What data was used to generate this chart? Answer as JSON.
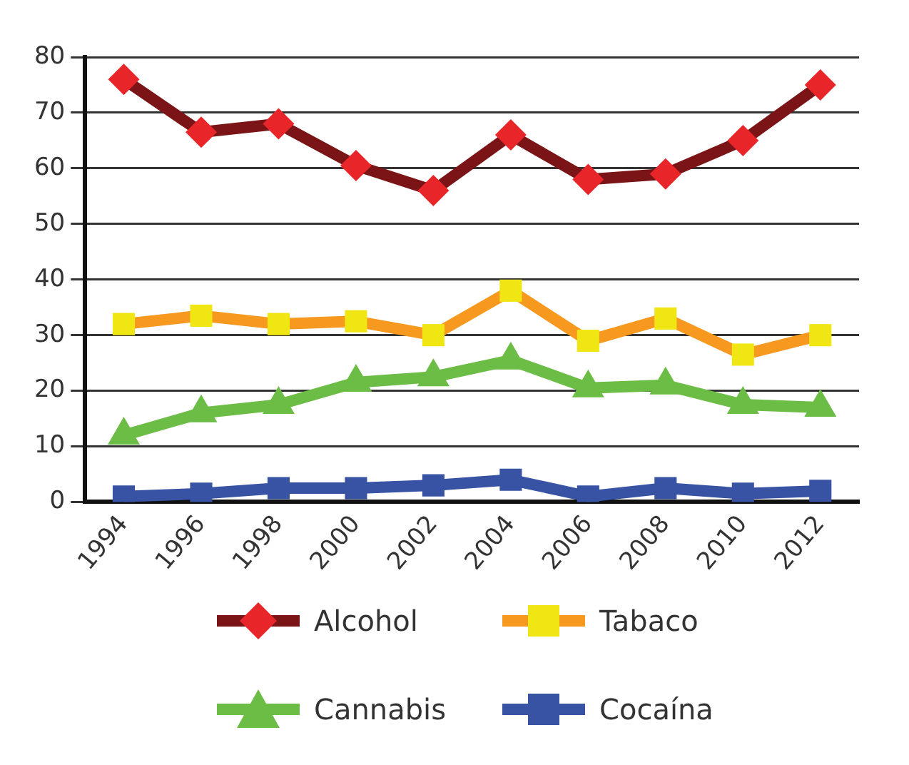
{
  "chart_data": {
    "type": "line",
    "categories": [
      "1994",
      "1996",
      "1998",
      "2000",
      "2002",
      "2004",
      "2006",
      "2008",
      "2010",
      "2012"
    ],
    "series": [
      {
        "name": "Alcohol",
        "color": "#7a1416",
        "colors": [
          "#e8262a",
          "#e8262a",
          "#e8262a",
          "#e8262a",
          "#e8262a",
          "#e8262a",
          "#e8262a",
          "#e8262a",
          "#e8262a",
          "#e8262a"
        ],
        "marker": "diamond",
        "values": [
          76,
          66.5,
          68,
          60.5,
          56,
          66,
          58,
          59,
          65,
          75
        ]
      },
      {
        "name": "Tabaco",
        "color": "#f7981f",
        "colors": [
          "#f0e614",
          "#f0e614",
          "#f0e614",
          "#f0e614",
          "#f0e614",
          "#f0e614",
          "#f0e614",
          "#f0e614",
          "#f0e614",
          "#f0e614"
        ],
        "marker": "square",
        "values": [
          32,
          33.5,
          32,
          32.5,
          30,
          38,
          29,
          33,
          26.5,
          30
        ]
      },
      {
        "name": "Cannabis",
        "color": "#6cbd45",
        "colors": [
          "#6cbd45",
          "#6cbd45",
          "#6cbd45",
          "#6cbd45",
          "#6cbd45",
          "#6cbd45",
          "#6cbd45",
          "#6cbd45",
          "#6cbd45",
          "#6cbd45"
        ],
        "marker": "triangle",
        "values": [
          12,
          16,
          17.5,
          21.5,
          22.5,
          25.5,
          20.5,
          21,
          17.5,
          17
        ]
      },
      {
        "name": "Cocaína",
        "color": "#3953a4",
        "colors": [
          "#3953a4",
          "#3953a4",
          "#3953a4",
          "#3953a4",
          "#3953a4",
          "#3953a4",
          "#3953a4",
          "#3953a4",
          "#3953a4",
          "#3953a4"
        ],
        "marker": "square",
        "values": [
          1,
          1.5,
          2.5,
          2.5,
          3,
          4,
          1,
          2.5,
          1.5,
          2
        ]
      }
    ],
    "ylim": [
      0,
      80
    ],
    "yticks": [
      0,
      10,
      20,
      30,
      40,
      50,
      60,
      70,
      80
    ],
    "grid": "y",
    "legend": "bottom",
    "line_style": "solid"
  }
}
